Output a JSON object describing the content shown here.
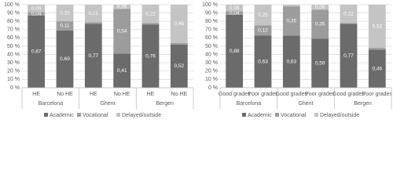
{
  "chart_data": [
    {
      "type": "bar",
      "stacked": true,
      "grid": true,
      "categories": [
        "HE",
        "No HE",
        "HE",
        "No HE",
        "HE",
        "No HE"
      ],
      "groups": [
        "Barcelona",
        "Ghent",
        "Bergen"
      ],
      "ylim": [
        0,
        100
      ],
      "yticks": [
        {
          "value": 0,
          "label": "0 %"
        },
        {
          "value": 10,
          "label": "10 %"
        },
        {
          "value": 20,
          "label": "20 %"
        },
        {
          "value": 30,
          "label": "30 %"
        },
        {
          "value": 40,
          "label": "40 %"
        },
        {
          "value": 50,
          "label": "50 %"
        },
        {
          "value": 60,
          "label": "60 %"
        },
        {
          "value": 70,
          "label": "70 %"
        },
        {
          "value": 80,
          "label": "80 %"
        },
        {
          "value": 90,
          "label": "90 %"
        },
        {
          "value": 100,
          "label": "100 %"
        }
      ],
      "series": [
        {
          "name": "Academic",
          "color": "#6b6b6b",
          "values": [
            87,
            69,
            77,
            41,
            76,
            52
          ],
          "value_labels": [
            "0,87",
            "0,69",
            "0,77",
            "0,41",
            "0,76",
            "0,52"
          ]
        },
        {
          "name": "Vocational",
          "color": "#9c9c9c",
          "values": [
            4,
            11,
            2,
            54,
            2,
            2
          ],
          "value_labels": [
            "0,04",
            "0,11",
            null,
            "0,54",
            null,
            null
          ]
        },
        {
          "name": "Delayed/outside",
          "color": "#c4c4c4",
          "values": [
            9,
            20,
            21,
            5,
            22,
            46
          ],
          "value_labels": [
            "0,09",
            "0,20",
            "0,21",
            "0,05",
            "0,22",
            "0,46"
          ]
        }
      ]
    },
    {
      "type": "bar",
      "stacked": true,
      "grid": true,
      "categories": [
        "Good grades",
        "Poor grades",
        "Good grades",
        "Poor grades",
        "Good grades",
        "Poor grades"
      ],
      "groups": [
        "Barcelona",
        "Ghent",
        "Bergen"
      ],
      "ylim": [
        0,
        100
      ],
      "yticks": [
        {
          "value": 0,
          "label": "0 %"
        },
        {
          "value": 10,
          "label": "10 %"
        },
        {
          "value": 20,
          "label": "20 %"
        },
        {
          "value": 30,
          "label": "30 %"
        },
        {
          "value": 40,
          "label": "40 %"
        },
        {
          "value": 50,
          "label": "50 %"
        },
        {
          "value": 60,
          "label": "60 %"
        },
        {
          "value": 70,
          "label": "70 %"
        },
        {
          "value": 80,
          "label": "80 %"
        },
        {
          "value": 90,
          "label": "90 %"
        },
        {
          "value": 100,
          "label": "100 %"
        }
      ],
      "series": [
        {
          "name": "Academic",
          "color": "#6b6b6b",
          "values": [
            88,
            63,
            63,
            59,
            77,
            46
          ],
          "value_labels": [
            "0,88",
            "0,63",
            "0,63",
            "0,59",
            "0,77",
            "0,46"
          ]
        },
        {
          "name": "Vocational",
          "color": "#9c9c9c",
          "values": [
            4,
            12,
            35,
            35,
            1,
            2
          ],
          "value_labels": [
            "0,04",
            "0,12",
            "0,35",
            "0,35",
            null,
            null
          ]
        },
        {
          "name": "Delayed/outside",
          "color": "#c4c4c4",
          "values": [
            8,
            25,
            2,
            6,
            22,
            52
          ],
          "value_labels": [
            "0,08",
            "0,25",
            null,
            "0,06",
            "0,22",
            "0,52"
          ]
        }
      ]
    }
  ]
}
